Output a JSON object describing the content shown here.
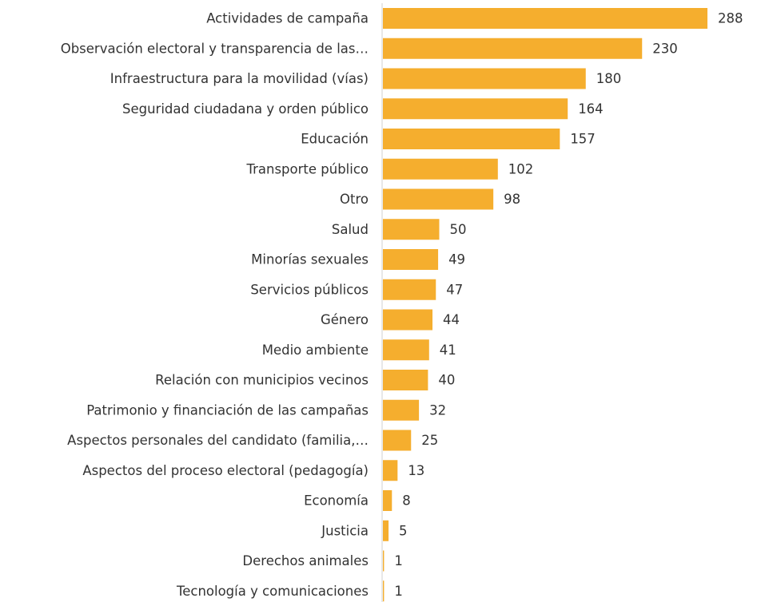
{
  "chart_data": {
    "type": "bar",
    "orientation": "horizontal",
    "color": "#f5ae2e",
    "categories": [
      "Actividades de campaña",
      "Observación electoral y transparencia de las…",
      "Infraestructura para la movilidad (vías)",
      "Seguridad ciudadana y orden público",
      "Educación",
      "Transporte público",
      "Otro",
      "Salud",
      "Minorías sexuales",
      "Servicios públicos",
      "Género",
      "Medio ambiente",
      "Relación con municipios vecinos",
      "Patrimonio y financiación de las campañas",
      "Aspectos personales del candidato (familia,…",
      "Aspectos del proceso electoral (pedagogía)",
      "Economía",
      "Justicia",
      "Derechos animales",
      "Tecnología y comunicaciones"
    ],
    "values": [
      288,
      230,
      180,
      164,
      157,
      102,
      98,
      50,
      49,
      47,
      44,
      41,
      40,
      32,
      25,
      13,
      8,
      5,
      1,
      1
    ]
  }
}
